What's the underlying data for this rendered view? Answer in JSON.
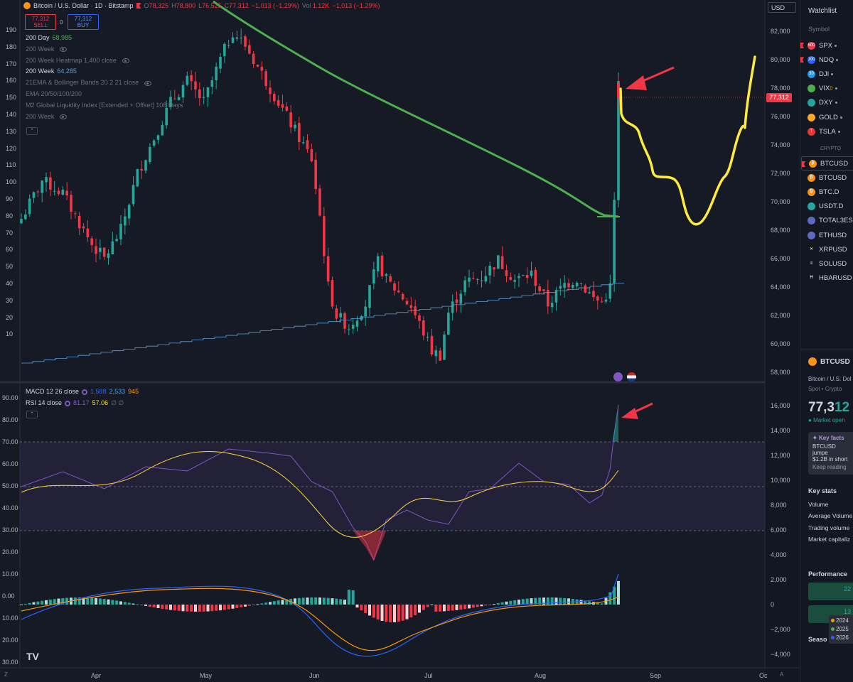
{
  "toolbar": {
    "symbol_title": "Bitcoin / U.S. Dollar · 1D · Bitstamp",
    "ohlc": {
      "o_label": "O",
      "o": "78,325",
      "h_label": "H",
      "h": "78,800",
      "l_label": "L",
      "l": "76,525",
      "c_label": "C",
      "c": "77,312",
      "change": "−1,013 (−1.29%)",
      "vol_label": "Vol",
      "vol": "1.12K",
      "vol_change": "−1,013 (−1.29%)"
    },
    "sell_price": "77,312",
    "sell_label": "SELL",
    "spread": "0",
    "buy_price": "77,312",
    "buy_label": "BUY",
    "currency": "USD"
  },
  "indicators": [
    {
      "name": "200 Day",
      "value": "68,985",
      "value_color": "#4caf50",
      "dim": false,
      "eye": false
    },
    {
      "name": "200 Week",
      "value": "",
      "dim": true,
      "eye": true
    },
    {
      "name": "200 Week Heatmap 1,400 close",
      "value": "",
      "dim": true,
      "eye": true
    },
    {
      "name": "200 Week",
      "value": "64,285",
      "value_color": "#5c9dd6",
      "dim": false,
      "eye": false
    },
    {
      "name": "21EMA & Bollinger Bands 20 2 21 close",
      "value": "",
      "dim": true,
      "eye": true
    },
    {
      "name": "EMA 20/50/100/200",
      "value": "",
      "dim": true,
      "eye": false
    },
    {
      "name": "M2 Global Liquidity Index [Extended + Offset] 108 Days",
      "value": "",
      "dim": true,
      "eye": false
    },
    {
      "name": "200 Week",
      "value": "",
      "dim": true,
      "eye": true
    }
  ],
  "lower_legend": [
    {
      "name": "MACD 12 26 close",
      "values": [
        {
          "v": "1,588",
          "color": "#2962ff"
        },
        {
          "v": "2,533",
          "color": "#42a5f5"
        },
        {
          "v": "945",
          "color": "#ff9800"
        }
      ]
    },
    {
      "name": "RSI 14 close",
      "values": [
        {
          "v": "81.17",
          "color": "#7e57c2"
        },
        {
          "v": "57.06",
          "color": "#fdd835"
        },
        {
          "v": "∅ ∅",
          "color": "#787b86"
        }
      ]
    }
  ],
  "price_axis": [
    "82,000",
    "80,000",
    "78,000",
    "76,000",
    "74,000",
    "72,000",
    "70,000",
    "68,000",
    "66,000",
    "64,000",
    "62,000",
    "60,000",
    "58,000"
  ],
  "last_price": "77,312",
  "left_axis_top": [
    "190",
    "180",
    "170",
    "160",
    "150",
    "140",
    "130",
    "120",
    "110",
    "100",
    "90",
    "80",
    "70",
    "60",
    "50",
    "40",
    "30",
    "20",
    "10"
  ],
  "left_axis_bottom": [
    "90.00",
    "80.00",
    "70.00",
    "60.00",
    "50.00",
    "40.00",
    "30.00",
    "20.00",
    "10.00",
    "0.00",
    "10.00",
    "20.00",
    "30.00"
  ],
  "macd_axis": [
    "16,000",
    "14,000",
    "12,000",
    "10,000",
    "8,000",
    "6,000",
    "4,000",
    "2,000",
    "0",
    "−2,000",
    "−4,000"
  ],
  "time_axis": [
    "Apr",
    "May",
    "Jun",
    "Jul",
    "Aug",
    "Sep",
    "Oc"
  ],
  "corner_labels": {
    "left": "Z",
    "right": "A"
  },
  "watchlist": {
    "title": "Watchlist",
    "column_header": "Symbol",
    "section_crypto": "CRYPTO",
    "items": [
      {
        "symbol": "SPX",
        "icon_text": "500",
        "icon_color": "#f23645",
        "flag": true,
        "dot": true,
        "sup": ""
      },
      {
        "symbol": "NDQ",
        "icon_text": "100",
        "icon_color": "#2962ff",
        "flag": true,
        "dot": true,
        "sup": ""
      },
      {
        "symbol": "DJI",
        "icon_text": "30",
        "icon_color": "#2196f3",
        "flag": false,
        "dot": true,
        "sup": ""
      },
      {
        "symbol": "VIX",
        "icon_text": "",
        "icon_color": "#4caf50",
        "flag": false,
        "dot": true,
        "sup": "D"
      },
      {
        "symbol": "DXY",
        "icon_text": "",
        "icon_color": "#26a69a",
        "flag": false,
        "dot": true,
        "sup": ""
      },
      {
        "symbol": "GOLD",
        "icon_text": "",
        "icon_color": "#f9a825",
        "flag": false,
        "dot": true,
        "sup": ""
      },
      {
        "symbol": "TSLA",
        "icon_text": "T",
        "icon_color": "#e53935",
        "flag": false,
        "dot": true,
        "sup": ""
      }
    ],
    "crypto_items": [
      {
        "symbol": "BTCUSD",
        "icon_text": "₿",
        "icon_color": "#f7931a",
        "flag": true,
        "selected": true
      },
      {
        "symbol": "BTCUSD",
        "icon_text": "₿",
        "icon_color": "#f7931a",
        "flag": false,
        "selected": false
      },
      {
        "symbol": "BTC.D",
        "icon_text": "₿",
        "icon_color": "#f7931a",
        "flag": false,
        "selected": false
      },
      {
        "symbol": "USDT.D",
        "icon_text": "",
        "icon_color": "#26a69a",
        "flag": false,
        "selected": false
      },
      {
        "symbol": "TOTAL3ES",
        "icon_text": "",
        "icon_color": "#5c6bc0",
        "flag": false,
        "selected": false
      },
      {
        "symbol": "ETHUSD",
        "icon_text": "",
        "icon_color": "#5c6bc0",
        "flag": false,
        "selected": false
      },
      {
        "symbol": "XRPUSD",
        "icon_text": "✕",
        "icon_color": "#131722",
        "flag": false,
        "selected": false
      },
      {
        "symbol": "SOLUSD",
        "icon_text": "≡",
        "icon_color": "#131722",
        "flag": false,
        "selected": false
      },
      {
        "symbol": "HBARUSD",
        "icon_text": "Ħ",
        "icon_color": "#131722",
        "flag": false,
        "selected": false
      }
    ]
  },
  "details": {
    "symbol": "BTCUSD",
    "full_name": "Bitcoin / U.S. Dol",
    "type": "Spot • Crypto",
    "price_main": "77,3",
    "price_tail": "12",
    "market_status": "Market open",
    "key_facts_title": "Key facts",
    "key_facts_line1": "BTCUSD jumpe",
    "key_facts_line2": "$1.2B in short",
    "keep_reading": "Keep reading",
    "key_stats_title": "Key stats",
    "key_stats": [
      "Volume",
      "Average Volume",
      "Trading volume",
      "Market capitaliz"
    ],
    "performance_title": "Performance",
    "performance_values": [
      "22",
      "13"
    ],
    "years": [
      {
        "y": "2024",
        "color": "#ff9800"
      },
      {
        "y": "2025",
        "color": "#4caf50"
      },
      {
        "y": "2026",
        "color": "#2962ff"
      }
    ],
    "seasonals": "Seaso"
  },
  "colors": {
    "up": "#26a69a",
    "down": "#f23645",
    "ma200d": "#4caf50",
    "drawing": "#ffeb3b",
    "arrow": "#f23645",
    "rsi": "#7e57c2",
    "rsi_ma": "#fdd835",
    "macd": "#2962ff",
    "signal": "#ff9800"
  }
}
